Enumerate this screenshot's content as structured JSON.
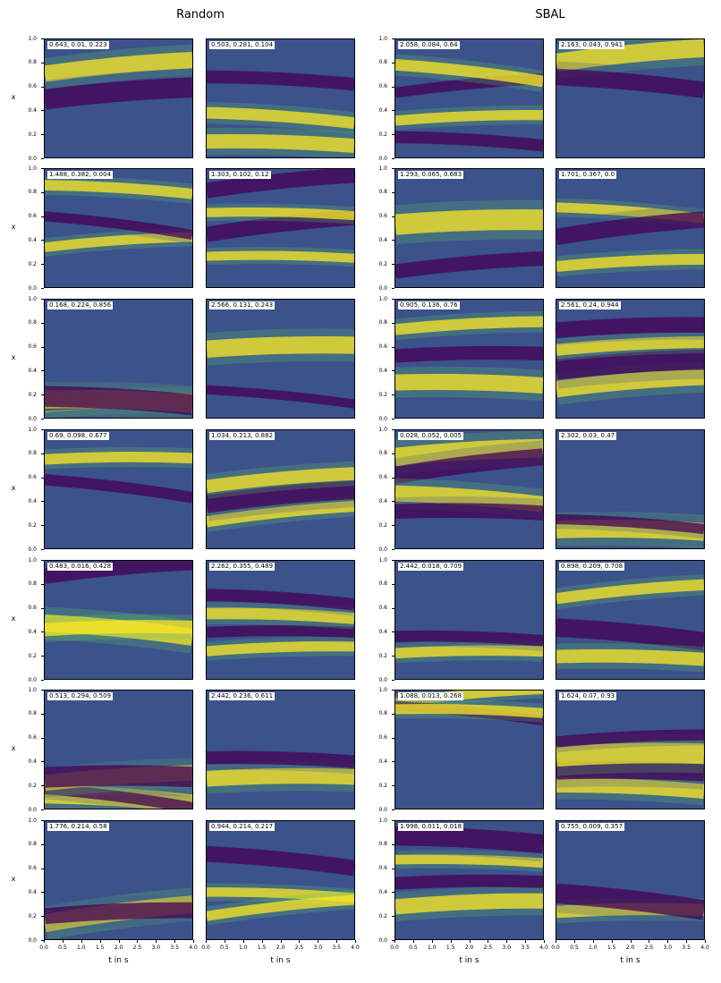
{
  "titles": {
    "left": "Random",
    "right": "SBAL"
  },
  "axis_labels": {
    "y": "x",
    "x": "t in s"
  },
  "yticks": [
    "0.0",
    "0.2",
    "0.4",
    "0.6",
    "0.8",
    "1.0"
  ],
  "xticks": [
    "0.0",
    "0.5",
    "1.0",
    "1.5",
    "2.0",
    "2.5",
    "3.0",
    "3.5",
    "4.0"
  ],
  "colormap": [
    "#440154",
    "#3b528b",
    "#21918c",
    "#5ec962",
    "#fde725"
  ],
  "chart_data": {
    "type": "heatmap",
    "grid": {
      "rows": 7,
      "cols": 4
    },
    "x_axis": {
      "label": "t in s",
      "range": [
        0.0,
        4.0
      ]
    },
    "y_axis": {
      "label": "x",
      "range": [
        0.0,
        1.0
      ]
    },
    "groups": [
      "Random",
      "SBAL"
    ],
    "panels": [
      "0.643, 0.01, 0.223",
      "0.503, 0.281, 0.104",
      "2.058, 0.084, 0.64",
      "2.163, 0.043, 0.941",
      "1.488, 0.382, 0.004",
      "1.303, 0.102, 0.12",
      "1.293, 0.065, 0.683",
      "1.701, 0.367, 0.0",
      "0.168, 0.224, 0.856",
      "2.566, 0.131, 0.243",
      "0.905, 0.136, 0.76",
      "2.561, 0.24, 0.944",
      "0.69, 0.098, 0.677",
      "1.034, 0.213, 0.882",
      "0.028, 0.052, 0.005",
      "2.302, 0.03, 0.47",
      "0.483, 0.016, 0.428",
      "2.262, 0.355, 0.489",
      "2.442, 0.018, 0.709",
      "0.898, 0.209, 0.708",
      "0.513, 0.294, 0.509",
      "2.442, 0.236, 0.611",
      "1.088, 0.013, 0.268",
      "1.624, 0.07, 0.93",
      "1.776, 0.214, 0.58",
      "0.944, 0.214, 0.217",
      "1.998, 0.011, 0.018",
      "0.755, 0.009, 0.357"
    ]
  }
}
